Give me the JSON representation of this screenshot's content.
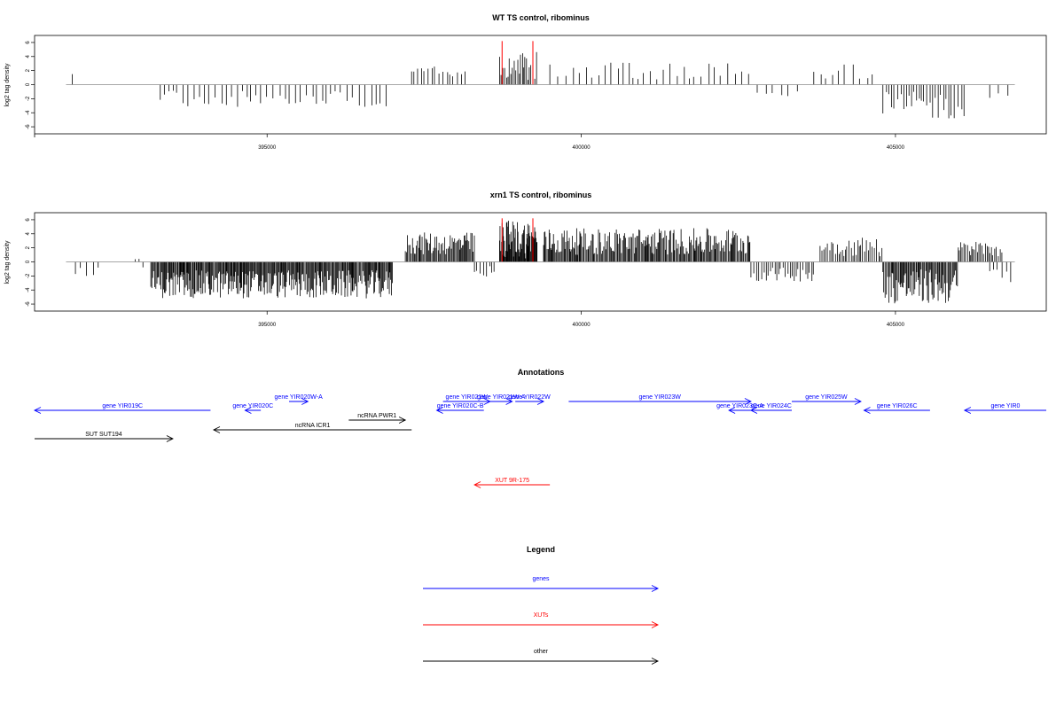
{
  "chart_data": [
    {
      "type": "bar",
      "title": "WT TS control, ribominus",
      "xlabel": "",
      "ylabel": "log2 tag density",
      "xlim": [
        391300,
        407400
      ],
      "ylim": [
        -7,
        7
      ],
      "xticks": [
        395000,
        400000,
        405000
      ],
      "xtick_labels": [
        "395000",
        "400000",
        "405000"
      ],
      "yticks": [
        -6,
        -4,
        -2,
        0,
        2,
        4,
        6
      ],
      "ytick_labels": [
        "-6",
        "-4",
        "-2",
        "0",
        "2",
        "4",
        "6"
      ],
      "baseline_range": [
        391800,
        406900
      ],
      "bar_color": "#000000",
      "highlight_color": "#ff0000",
      "highlight_x": [
        398740,
        399230
      ],
      "highlight_top": 6.2,
      "regions": [
        {
          "from": 391900,
          "to": 392000,
          "step": 150,
          "lo": 1.5,
          "hi": 1.8
        },
        {
          "from": 393300,
          "to": 396900,
          "step": 85,
          "lo": -3.2,
          "hi": -0.8
        },
        {
          "from": 397300,
          "to": 398200,
          "step": 55,
          "lo": 0.8,
          "hi": 3.2
        },
        {
          "from": 398700,
          "to": 399300,
          "step": 25,
          "lo": 0.6,
          "hi": 4.8
        },
        {
          "from": 399500,
          "to": 402700,
          "step": 95,
          "lo": 0.7,
          "hi": 3.2
        },
        {
          "from": 402800,
          "to": 403500,
          "step": 110,
          "lo": -1.8,
          "hi": -0.5
        },
        {
          "from": 403700,
          "to": 404700,
          "step": 110,
          "lo": 0.8,
          "hi": 2.9
        },
        {
          "from": 404800,
          "to": 406100,
          "step": 45,
          "lo": -5.0,
          "hi": -1.0
        },
        {
          "from": 406500,
          "to": 406800,
          "step": 150,
          "lo": -2.2,
          "hi": -1.0
        }
      ]
    },
    {
      "type": "bar",
      "title": "xrn1 TS control, ribominus",
      "xlabel": "",
      "ylabel": "log2 tag density",
      "xlim": [
        391300,
        407400
      ],
      "ylim": [
        -7,
        7
      ],
      "xticks": [
        395000,
        400000,
        405000
      ],
      "xtick_labels": [
        "395000",
        "400000",
        "405000"
      ],
      "yticks": [
        -6,
        -4,
        -2,
        0,
        2,
        4,
        6
      ],
      "ytick_labels": [
        "-6",
        "-4",
        "-2",
        "0",
        "2",
        "4",
        "6"
      ],
      "baseline_range": [
        391800,
        406900
      ],
      "bar_color": "#000000",
      "highlight_color": "#ff0000",
      "highlight_x": [
        398740,
        399230
      ],
      "highlight_top": 6.2,
      "regions": [
        {
          "from": 391950,
          "to": 392350,
          "step": 90,
          "lo": -2.0,
          "hi": -0.5
        },
        {
          "from": 392900,
          "to": 393050,
          "step": 60,
          "lo": -0.8,
          "hi": 0.5
        },
        {
          "from": 393150,
          "to": 397000,
          "step": 14,
          "lo": -5.2,
          "hi": -1.2
        },
        {
          "from": 397200,
          "to": 398300,
          "step": 16,
          "lo": 1.0,
          "hi": 4.2
        },
        {
          "from": 398300,
          "to": 398650,
          "step": 45,
          "lo": -2.8,
          "hi": -0.5
        },
        {
          "from": 398700,
          "to": 399300,
          "step": 10,
          "lo": 0.5,
          "hi": 6.0
        },
        {
          "from": 399400,
          "to": 402700,
          "step": 16,
          "lo": 1.0,
          "hi": 4.8
        },
        {
          "from": 402700,
          "to": 403700,
          "step": 35,
          "lo": -2.8,
          "hi": -0.8
        },
        {
          "from": 403800,
          "to": 404800,
          "step": 30,
          "lo": 0.8,
          "hi": 3.6
        },
        {
          "from": 404800,
          "to": 406000,
          "step": 16,
          "lo": -6.0,
          "hi": -1.0
        },
        {
          "from": 406000,
          "to": 406700,
          "step": 25,
          "lo": 0.8,
          "hi": 3.0
        },
        {
          "from": 406500,
          "to": 406850,
          "step": 60,
          "lo": -3.0,
          "hi": -1.0
        }
      ]
    }
  ],
  "annotations": {
    "title": "Annotations",
    "items": [
      {
        "label": "gene YIR019C",
        "color": "#0000ff",
        "from": 391300,
        "to": 394100,
        "dir": "left",
        "row": 2
      },
      {
        "label": "gene YIR020W-A",
        "color": "#0000ff",
        "from": 395350,
        "to": 395650,
        "dir": "right",
        "row": 1
      },
      {
        "label": "gene YIR020C",
        "color": "#0000ff",
        "from": 394650,
        "to": 394900,
        "dir": "left",
        "row": 2
      },
      {
        "label": "gene YIR021W",
        "color": "#0000ff",
        "from": 397800,
        "to": 398550,
        "dir": "right",
        "row": 1
      },
      {
        "label": "gene YIR021W-A",
        "color": "#0000ff",
        "from": 398550,
        "to": 398900,
        "dir": "right",
        "row": 1
      },
      {
        "label": "gene YIR022W",
        "color": "#0000ff",
        "from": 398950,
        "to": 399400,
        "dir": "right",
        "row": 1
      },
      {
        "label": "gene YIR020C-B",
        "color": "#0000ff",
        "from": 397700,
        "to": 398450,
        "dir": "left",
        "row": 2
      },
      {
        "label": "gene YIR023W",
        "color": "#0000ff",
        "from": 399800,
        "to": 402700,
        "dir": "right",
        "row": 1
      },
      {
        "label": "gene YIR023C-A",
        "color": "#0000ff",
        "from": 402350,
        "to": 402700,
        "dir": "left",
        "row": 2
      },
      {
        "label": "gene YIR024C",
        "color": "#0000ff",
        "from": 402700,
        "to": 403350,
        "dir": "left",
        "row": 2
      },
      {
        "label": "gene YIR025W",
        "color": "#0000ff",
        "from": 403350,
        "to": 404450,
        "dir": "right",
        "row": 1
      },
      {
        "label": "gene YIR026C",
        "color": "#0000ff",
        "from": 404500,
        "to": 405550,
        "dir": "left",
        "row": 2
      },
      {
        "label": "gene YIR0",
        "color": "#0000ff",
        "from": 406100,
        "to": 407400,
        "dir": "left",
        "row": 2
      },
      {
        "label": "ncRNA PWR1",
        "color": "#000000",
        "from": 396300,
        "to": 397200,
        "dir": "right",
        "row": 3
      },
      {
        "label": "ncRNA ICR1",
        "color": "#000000",
        "from": 394150,
        "to": 397300,
        "dir": "left",
        "row": 4
      },
      {
        "label": "SUT SUT194",
        "color": "#000000",
        "from": 391300,
        "to": 393500,
        "dir": "right",
        "row": 5
      },
      {
        "label": "XUT 9R-175",
        "color": "#ff0000",
        "from": 398300,
        "to": 399500,
        "dir": "left",
        "row": 9
      }
    ]
  },
  "legend": {
    "title": "Legend",
    "items": [
      {
        "label": "genes",
        "color": "#0000ff"
      },
      {
        "label": "XUTs",
        "color": "#ff0000"
      },
      {
        "label": "other",
        "color": "#000000"
      }
    ]
  }
}
